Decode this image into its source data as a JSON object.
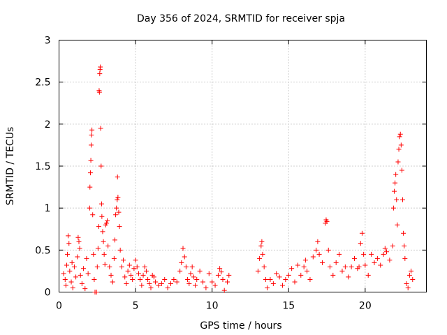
{
  "chart_data": {
    "type": "scatter",
    "title": "Day 356 of 2024, SRMTID for receiver spja",
    "xlabel": "GPS time / hours",
    "ylabel": "SRMTID / TECUs",
    "xlim": [
      0,
      24
    ],
    "ylim": [
      0,
      3
    ],
    "x_ticks": [
      0,
      5,
      10,
      15,
      20
    ],
    "x_tick_labels": [
      "0",
      "5",
      "10",
      "15",
      "20"
    ],
    "y_ticks": [
      0,
      0.5,
      1,
      1.5,
      2,
      2.5,
      3
    ],
    "y_tick_labels": [
      "0",
      "0.5",
      "1",
      "1.5",
      "2",
      "2.5",
      "3"
    ],
    "grid": true,
    "marker": "+",
    "color": "#ff0000",
    "series": [
      {
        "name": "SRMTID",
        "points": [
          [
            0.3,
            0.22
          ],
          [
            0.4,
            0.15
          ],
          [
            0.45,
            0.08
          ],
          [
            0.5,
            0.32
          ],
          [
            0.55,
            0.45
          ],
          [
            0.6,
            0.67
          ],
          [
            0.65,
            0.58
          ],
          [
            0.7,
            0.25
          ],
          [
            0.8,
            0.12
          ],
          [
            0.85,
            0.35
          ],
          [
            0.9,
            0.05
          ],
          [
            1.0,
            0.3
          ],
          [
            1.1,
            0.18
          ],
          [
            1.2,
            0.42
          ],
          [
            1.25,
            0.65
          ],
          [
            1.3,
            0.6
          ],
          [
            1.35,
            0.52
          ],
          [
            1.4,
            0.2
          ],
          [
            1.5,
            0.1
          ],
          [
            1.6,
            0.28
          ],
          [
            1.7,
            0.04
          ],
          [
            1.8,
            0.4
          ],
          [
            1.9,
            0.22
          ],
          [
            2.0,
            1.0
          ],
          [
            2.02,
            1.25
          ],
          [
            2.05,
            1.42
          ],
          [
            2.08,
            1.57
          ],
          [
            2.1,
            1.75
          ],
          [
            2.12,
            1.87
          ],
          [
            2.15,
            1.93
          ],
          [
            2.2,
            0.92
          ],
          [
            2.25,
            0.45
          ],
          [
            2.3,
            0.15
          ],
          [
            2.35,
            0.0
          ],
          [
            2.45,
            0.0
          ],
          [
            2.5,
            0.3
          ],
          [
            2.55,
            0.52
          ],
          [
            2.6,
            0.78
          ],
          [
            2.62,
            2.4
          ],
          [
            2.64,
            2.38
          ],
          [
            2.66,
            2.6
          ],
          [
            2.68,
            2.65
          ],
          [
            2.7,
            2.68
          ],
          [
            2.72,
            1.95
          ],
          [
            2.75,
            1.5
          ],
          [
            2.78,
            1.05
          ],
          [
            2.8,
            0.9
          ],
          [
            2.85,
            0.72
          ],
          [
            2.9,
            0.6
          ],
          [
            2.95,
            0.45
          ],
          [
            3.0,
            0.33
          ],
          [
            3.05,
            0.8
          ],
          [
            3.1,
            0.82
          ],
          [
            3.15,
            0.85
          ],
          [
            3.2,
            0.55
          ],
          [
            3.3,
            0.3
          ],
          [
            3.4,
            0.2
          ],
          [
            3.5,
            0.12
          ],
          [
            3.6,
            0.4
          ],
          [
            3.65,
            0.62
          ],
          [
            3.7,
            0.92
          ],
          [
            3.75,
            1.0
          ],
          [
            3.8,
            1.1
          ],
          [
            3.82,
            1.37
          ],
          [
            3.85,
            1.13
          ],
          [
            3.9,
            0.95
          ],
          [
            3.95,
            0.78
          ],
          [
            4.0,
            0.5
          ],
          [
            4.1,
            0.3
          ],
          [
            4.2,
            0.38
          ],
          [
            4.3,
            0.18
          ],
          [
            4.4,
            0.1
          ],
          [
            4.5,
            0.25
          ],
          [
            4.6,
            0.32
          ],
          [
            4.7,
            0.2
          ],
          [
            4.8,
            0.15
          ],
          [
            4.9,
            0.28
          ],
          [
            5.0,
            0.38
          ],
          [
            5.1,
            0.3
          ],
          [
            5.2,
            0.22
          ],
          [
            5.3,
            0.15
          ],
          [
            5.4,
            0.08
          ],
          [
            5.5,
            0.2
          ],
          [
            5.6,
            0.3
          ],
          [
            5.7,
            0.25
          ],
          [
            5.8,
            0.15
          ],
          [
            5.9,
            0.1
          ],
          [
            6.0,
            0.05
          ],
          [
            6.1,
            0.2
          ],
          [
            6.2,
            0.18
          ],
          [
            6.3,
            0.12
          ],
          [
            6.5,
            0.08
          ],
          [
            6.7,
            0.1
          ],
          [
            6.9,
            0.15
          ],
          [
            7.1,
            0.05
          ],
          [
            7.3,
            0.1
          ],
          [
            7.5,
            0.15
          ],
          [
            7.7,
            0.12
          ],
          [
            7.9,
            0.25
          ],
          [
            8.0,
            0.35
          ],
          [
            8.1,
            0.52
          ],
          [
            8.2,
            0.42
          ],
          [
            8.3,
            0.3
          ],
          [
            8.4,
            0.15
          ],
          [
            8.5,
            0.1
          ],
          [
            8.6,
            0.22
          ],
          [
            8.7,
            0.3
          ],
          [
            8.8,
            0.18
          ],
          [
            8.9,
            0.08
          ],
          [
            9.0,
            0.15
          ],
          [
            9.2,
            0.25
          ],
          [
            9.4,
            0.12
          ],
          [
            9.6,
            0.05
          ],
          [
            9.8,
            0.22
          ],
          [
            10.0,
            0.12
          ],
          [
            10.2,
            0.08
          ],
          [
            10.4,
            0.2
          ],
          [
            10.5,
            0.28
          ],
          [
            10.6,
            0.24
          ],
          [
            10.7,
            0.15
          ],
          [
            10.8,
            0.02
          ],
          [
            11.0,
            0.12
          ],
          [
            11.1,
            0.2
          ],
          [
            13.0,
            0.25
          ],
          [
            13.1,
            0.4
          ],
          [
            13.2,
            0.55
          ],
          [
            13.25,
            0.6
          ],
          [
            13.3,
            0.45
          ],
          [
            13.4,
            0.3
          ],
          [
            13.5,
            0.15
          ],
          [
            13.6,
            0.05
          ],
          [
            13.8,
            0.15
          ],
          [
            14.0,
            0.1
          ],
          [
            14.2,
            0.22
          ],
          [
            14.4,
            0.18
          ],
          [
            14.6,
            0.08
          ],
          [
            14.8,
            0.15
          ],
          [
            15.0,
            0.2
          ],
          [
            15.2,
            0.28
          ],
          [
            15.4,
            0.12
          ],
          [
            15.6,
            0.32
          ],
          [
            15.8,
            0.2
          ],
          [
            16.0,
            0.3
          ],
          [
            16.1,
            0.38
          ],
          [
            16.2,
            0.25
          ],
          [
            16.4,
            0.15
          ],
          [
            16.6,
            0.42
          ],
          [
            16.8,
            0.5
          ],
          [
            16.9,
            0.6
          ],
          [
            17.0,
            0.45
          ],
          [
            17.2,
            0.35
          ],
          [
            17.4,
            0.82
          ],
          [
            17.45,
            0.86
          ],
          [
            17.5,
            0.84
          ],
          [
            17.6,
            0.5
          ],
          [
            17.7,
            0.3
          ],
          [
            17.9,
            0.2
          ],
          [
            18.1,
            0.35
          ],
          [
            18.3,
            0.45
          ],
          [
            18.5,
            0.25
          ],
          [
            18.7,
            0.3
          ],
          [
            18.9,
            0.18
          ],
          [
            19.1,
            0.3
          ],
          [
            19.3,
            0.4
          ],
          [
            19.5,
            0.28
          ],
          [
            19.6,
            0.3
          ],
          [
            19.7,
            0.58
          ],
          [
            19.8,
            0.7
          ],
          [
            19.9,
            0.45
          ],
          [
            20.0,
            0.32
          ],
          [
            20.2,
            0.2
          ],
          [
            20.4,
            0.45
          ],
          [
            20.6,
            0.35
          ],
          [
            20.8,
            0.4
          ],
          [
            21.0,
            0.32
          ],
          [
            21.2,
            0.45
          ],
          [
            21.3,
            0.52
          ],
          [
            21.4,
            0.48
          ],
          [
            21.6,
            0.38
          ],
          [
            21.8,
            0.55
          ],
          [
            21.85,
            1.0
          ],
          [
            21.9,
            1.2
          ],
          [
            21.95,
            1.3
          ],
          [
            22.0,
            1.4
          ],
          [
            22.05,
            1.1
          ],
          [
            22.1,
            0.8
          ],
          [
            22.15,
            1.55
          ],
          [
            22.2,
            1.7
          ],
          [
            22.25,
            1.85
          ],
          [
            22.3,
            1.88
          ],
          [
            22.35,
            1.75
          ],
          [
            22.4,
            1.45
          ],
          [
            22.45,
            1.1
          ],
          [
            22.5,
            0.7
          ],
          [
            22.55,
            0.55
          ],
          [
            22.6,
            0.4
          ],
          [
            22.7,
            0.1
          ],
          [
            22.8,
            0.05
          ],
          [
            22.9,
            0.2
          ],
          [
            23.0,
            0.25
          ],
          [
            23.1,
            0.15
          ]
        ]
      }
    ]
  }
}
